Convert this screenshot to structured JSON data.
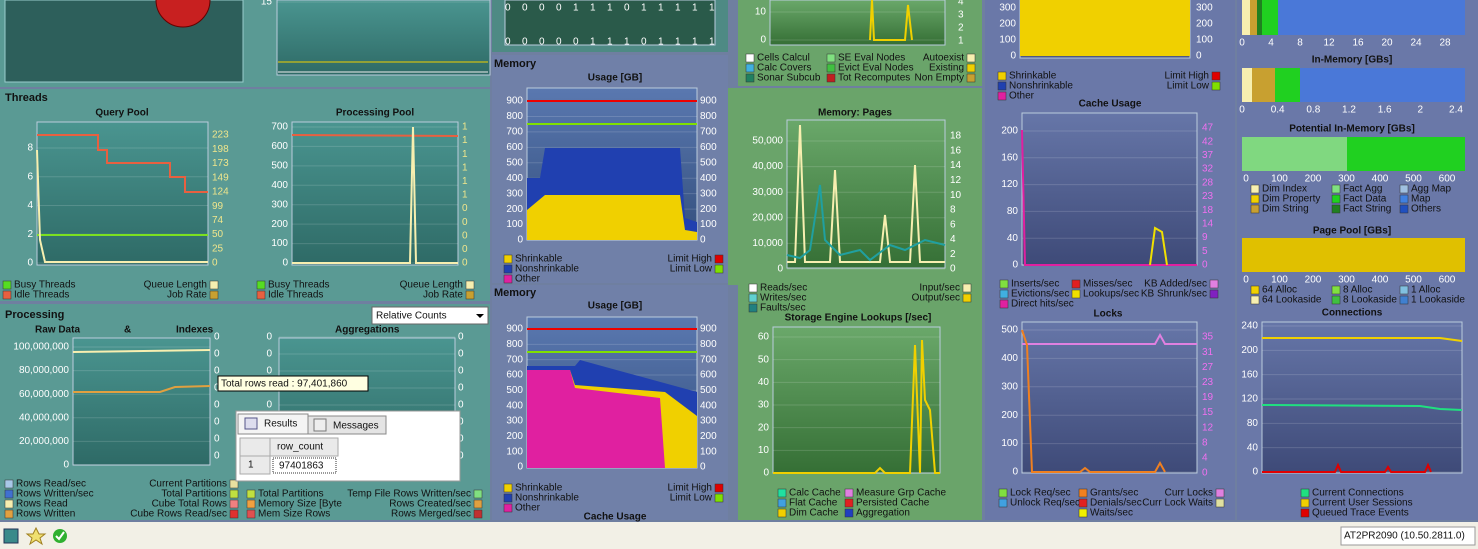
{
  "panels": [
    "Threads",
    "Memory",
    "Memory"
  ],
  "processing": {
    "title": "Processing",
    "dropdown": "Relative Counts",
    "headers": [
      "Raw Data",
      "&",
      "Indexes",
      "Aggregations"
    ]
  },
  "charts": [
    {
      "left_ticks": [
        "15"
      ]
    },
    {
      "title": "Query Pool",
      "left_ticks": [
        "8",
        "6",
        "4",
        "2",
        "0"
      ],
      "right_ticks": [
        "223",
        "198",
        "173",
        "149",
        "124",
        "99",
        "74",
        "50",
        "25",
        "0"
      ],
      "legend": [
        [
          {
            "label": "Busy Threads",
            "color": "#55dd22"
          },
          {
            "label": "Idle Threads",
            "color": "#e86040"
          }
        ],
        [
          {
            "label": "Queue Length",
            "color": "#f7efb0"
          },
          {
            "label": "Job Rate",
            "color": "#c8a030"
          }
        ]
      ]
    },
    {
      "title": "Processing Pool",
      "left_ticks": [
        "700",
        "600",
        "500",
        "400",
        "300",
        "200",
        "100",
        "0"
      ],
      "right_ticks": [
        "1",
        "1",
        "1",
        "1",
        "1",
        "1",
        "0",
        "0",
        "0",
        "0",
        "0"
      ],
      "legend": [
        [
          {
            "label": "Busy Threads",
            "color": "#55dd22"
          },
          {
            "label": "Idle Threads",
            "color": "#e86040"
          }
        ],
        [
          {
            "label": "Queue Length",
            "color": "#f7efb0"
          },
          {
            "label": "Job Rate",
            "color": "#c8a030"
          }
        ]
      ]
    },
    {
      "left_ticks": [
        "100,000,000",
        "80,000,000",
        "60,000,000",
        "40,000,000",
        "20,000,000",
        "0"
      ],
      "right_ticks": [
        "0",
        "0",
        "0",
        "0",
        "0",
        "0",
        "0",
        "0"
      ],
      "legend": [
        [
          {
            "label": "Rows Read/sec",
            "color": "#a8c8e8"
          },
          {
            "label": "Rows Written/sec",
            "color": "#4070d0"
          },
          {
            "label": "Rows Read",
            "color": "#f7efb0"
          },
          {
            "label": "Rows Written",
            "color": "#e0a040"
          }
        ],
        [
          {
            "label": "Current Partitions",
            "color": "#e8e0a0"
          },
          {
            "label": "Total Partitions",
            "color": "#c0e040"
          },
          {
            "label": "Cube Total Rows",
            "color": "#f08080"
          },
          {
            "label": "Cube Rows Read/sec",
            "color": "#e03030"
          }
        ]
      ]
    },
    {
      "left_ticks": [
        "0",
        "0",
        "0",
        "0",
        "0",
        "0",
        "0",
        "0"
      ],
      "right_ticks": [
        "0",
        "0",
        "0",
        "0",
        "0",
        "0",
        "0",
        "0"
      ],
      "legend": [
        [
          {
            "label": "Total Partitions",
            "color": "#c0e040"
          },
          {
            "label": "Memory Size [Byte",
            "color": "#f0a040"
          },
          {
            "label": "Mem Size Rows",
            "color": "#e05050"
          }
        ],
        [
          {
            "label": "Temp File Rows Written/sec",
            "color": "#80e080"
          },
          {
            "label": "Rows Created/sec",
            "color": "#e0a040"
          },
          {
            "label": "Rows Merged/sec",
            "color": "#c03030"
          }
        ]
      ]
    },
    {
      "digit_rows": [
        [
          "0",
          "0",
          "0",
          "0",
          "1",
          "1",
          "1",
          "0",
          "1",
          "1",
          "1",
          "1",
          "1"
        ],
        [
          "0",
          "0",
          "0",
          "0",
          "0",
          "1",
          "1",
          "1",
          "0",
          "1",
          "1",
          "1",
          "1"
        ]
      ]
    },
    {
      "title": "Usage [GB]",
      "left_ticks": [
        "900",
        "800",
        "700",
        "600",
        "500",
        "400",
        "300",
        "200",
        "100",
        "0"
      ],
      "right_ticks": [
        "900",
        "800",
        "700",
        "600",
        "500",
        "400",
        "300",
        "200",
        "100",
        "0"
      ],
      "legend": [
        [
          {
            "label": "Shrinkable",
            "color": "#f0d000"
          },
          {
            "label": "Nonshrinkable",
            "color": "#2040b0"
          },
          {
            "label": "Other",
            "color": "#e020a0"
          }
        ],
        [
          {
            "label": "Limit High",
            "color": "#e00000"
          },
          {
            "label": "Limit Low",
            "color": "#80e000"
          }
        ]
      ]
    },
    {
      "title": "Usage [GB]",
      "caption": "Cache Usage",
      "left_ticks": [
        "900",
        "800",
        "700",
        "600",
        "500",
        "400",
        "300",
        "200",
        "100",
        "0"
      ],
      "right_ticks": [
        "900",
        "800",
        "700",
        "600",
        "500",
        "400",
        "300",
        "200",
        "100",
        "0"
      ],
      "legend": [
        [
          {
            "label": "Shrinkable",
            "color": "#f0d000"
          },
          {
            "label": "Nonshrinkable",
            "color": "#2040b0"
          },
          {
            "label": "Other",
            "color": "#e020a0"
          }
        ],
        [
          {
            "label": "Limit High",
            "color": "#e00000"
          },
          {
            "label": "Limit Low",
            "color": "#80e000"
          }
        ]
      ]
    },
    {
      "left_ticks": [
        "10",
        "0"
      ],
      "right_ticks": [
        "4",
        "3",
        "2",
        "1"
      ],
      "legend": [
        [
          {
            "label": "Cells Calcul",
            "color": "#ffffff"
          },
          {
            "label": "Calc Covers",
            "color": "#40b0e0"
          },
          {
            "label": "Sonar Subcub",
            "color": "#208060"
          }
        ],
        [
          {
            "label": "SE Eval Nodes",
            "color": "#80e080"
          },
          {
            "label": "Evict Eval Nodes",
            "color": "#40c040"
          },
          {
            "label": "Tot Recomputes",
            "color": "#c02020"
          }
        ],
        [
          {
            "label": "Autoexist",
            "color": "#f7efb0"
          },
          {
            "label": "Existing",
            "color": "#f0d000"
          },
          {
            "label": "Non Empty",
            "color": "#c8a030"
          }
        ]
      ]
    },
    {
      "title": "Memory: Pages",
      "left_ticks": [
        "50,000",
        "40,000",
        "30,000",
        "20,000",
        "10,000",
        "0"
      ],
      "right_ticks": [
        "18",
        "16",
        "14",
        "12",
        "10",
        "8",
        "6",
        "4",
        "2",
        "0"
      ],
      "legend": [
        [
          {
            "label": "Reads/sec",
            "color": "#ffffff"
          },
          {
            "label": "Writes/sec",
            "color": "#60d0d0"
          },
          {
            "label": "Faults/sec",
            "color": "#208080"
          }
        ],
        [
          {
            "label": "Input/sec",
            "color": "#f7efb0"
          },
          {
            "label": "Output/sec",
            "color": "#f0d000"
          }
        ]
      ]
    },
    {
      "title": "Storage Engine Lookups [/sec]",
      "left_ticks": [
        "60",
        "50",
        "40",
        "30",
        "20",
        "10",
        "0"
      ],
      "legend": [
        [
          {
            "label": "Calc Cache",
            "color": "#20e0a0"
          },
          {
            "label": "Flat Cache",
            "color": "#40a0e0"
          },
          {
            "label": "Dim Cache",
            "color": "#f0d000"
          }
        ],
        [
          {
            "label": "Measure Grp Cache",
            "color": "#e080e0"
          },
          {
            "label": "Persisted Cache",
            "color": "#e02020"
          },
          {
            "label": "Aggregation",
            "color": "#2040c0"
          }
        ]
      ]
    },
    {
      "left_ticks": [
        "300",
        "200",
        "100",
        "0"
      ],
      "right_ticks": [
        "300",
        "200",
        "100",
        "0"
      ],
      "legend": [
        [
          {
            "label": "Shrinkable",
            "color": "#f0d000"
          },
          {
            "label": "Nonshrinkable",
            "color": "#2040b0"
          },
          {
            "label": "Other",
            "color": "#e020a0"
          }
        ],
        [
          {
            "label": "Limit High",
            "color": "#e00000"
          },
          {
            "label": "Limit Low",
            "color": "#80e000"
          }
        ]
      ]
    },
    {
      "title": "Cache Usage",
      "left_ticks": [
        "200",
        "160",
        "120",
        "80",
        "40",
        "0"
      ],
      "right_ticks": [
        "47",
        "42",
        "37",
        "32",
        "28",
        "23",
        "18",
        "14",
        "9",
        "5",
        "0"
      ],
      "legend": [
        [
          {
            "label": "Inserts/sec",
            "color": "#80e040"
          },
          {
            "label": "Evictions/sec",
            "color": "#40b0e0"
          },
          {
            "label": "Direct hits/sec",
            "color": "#e020a0"
          }
        ],
        [
          {
            "label": "Misses/sec",
            "color": "#e02020"
          },
          {
            "label": "Lookups/sec",
            "color": "#f0e000"
          }
        ],
        [
          {
            "label": "KB Added/sec",
            "color": "#e080e0"
          },
          {
            "label": "KB Shrunk/sec",
            "color": "#8020c0"
          }
        ]
      ]
    },
    {
      "title": "Locks",
      "left_ticks": [
        "500",
        "400",
        "300",
        "200",
        "100",
        "0"
      ],
      "right_ticks": [
        "35",
        "31",
        "27",
        "23",
        "19",
        "15",
        "12",
        "8",
        "4",
        "0"
      ],
      "legend": [
        [
          {
            "label": "Lock Req/sec",
            "color": "#80e040"
          },
          {
            "label": "Unlock Req/sec",
            "color": "#40a0e0"
          }
        ],
        [
          {
            "label": "Grants/sec",
            "color": "#f08020"
          },
          {
            "label": "Denials/sec",
            "color": "#e02020"
          },
          {
            "label": "Waits/sec",
            "color": "#f0f000"
          }
        ],
        [
          {
            "label": "Curr Locks",
            "color": "#e080e0"
          },
          {
            "label": "Curr Lock Waits",
            "color": "#e0e0a0"
          }
        ]
      ]
    },
    {
      "title": "Connections",
      "left_ticks": [
        "240",
        "200",
        "160",
        "120",
        "80",
        "40",
        "0"
      ],
      "legend": [
        [
          {
            "label": "Current Connections",
            "color": "#20e080"
          },
          {
            "label": "Current User Sessions",
            "color": "#f0d000"
          },
          {
            "label": "Queued Trace Events",
            "color": "#e00000"
          }
        ]
      ]
    },
    {
      "x_ticks": [
        "0",
        "4",
        "8",
        "12",
        "16",
        "20",
        "24",
        "28"
      ]
    },
    {
      "title": "In-Memory [GBs]",
      "x_ticks": [
        "0",
        "0.4",
        "0.8",
        "1.2",
        "1.6",
        "2",
        "2.4"
      ]
    },
    {
      "title": "Potential In-Memory [GBs]",
      "x_ticks": [
        "0",
        "100",
        "200",
        "300",
        "400",
        "500",
        "600"
      ],
      "legend": [
        [
          {
            "label": "Dim Index",
            "color": "#f7efb0"
          },
          {
            "label": "Dim Property",
            "color": "#f0d000"
          },
          {
            "label": "Dim String",
            "color": "#c8a030"
          }
        ],
        [
          {
            "label": "Fact Agg",
            "color": "#80e080"
          },
          {
            "label": "Fact Data",
            "color": "#20d020"
          },
          {
            "label": "Fact String",
            "color": "#208020"
          }
        ],
        [
          {
            "label": "Agg Map",
            "color": "#a0c0e0"
          },
          {
            "label": "Map",
            "color": "#4080e0"
          },
          {
            "label": "Others",
            "color": "#2050c0"
          }
        ]
      ]
    },
    {
      "title": "Page Pool [GBs]",
      "x_ticks": [
        "0",
        "100",
        "200",
        "300",
        "400",
        "500",
        "600"
      ],
      "legend": [
        [
          {
            "label": "64 Alloc",
            "color": "#f0d000"
          },
          {
            "label": "64 Lookaside",
            "color": "#f7efb0"
          }
        ],
        [
          {
            "label": "8 Alloc",
            "color": "#80e040"
          },
          {
            "label": "8 Lookaside",
            "color": "#40c040"
          }
        ],
        [
          {
            "label": "1 Alloc",
            "color": "#80c0e0"
          },
          {
            "label": "1 Lookaside",
            "color": "#4080d0"
          }
        ]
      ]
    }
  ],
  "tooltip": "Total rows read : 97,401,860",
  "results": {
    "tabs": [
      "Results",
      "Messages"
    ],
    "column": "row_count",
    "row_number": "1",
    "value": "97401863"
  },
  "status": {
    "server": "AT2PR2090 (10.50.2811.0)"
  }
}
